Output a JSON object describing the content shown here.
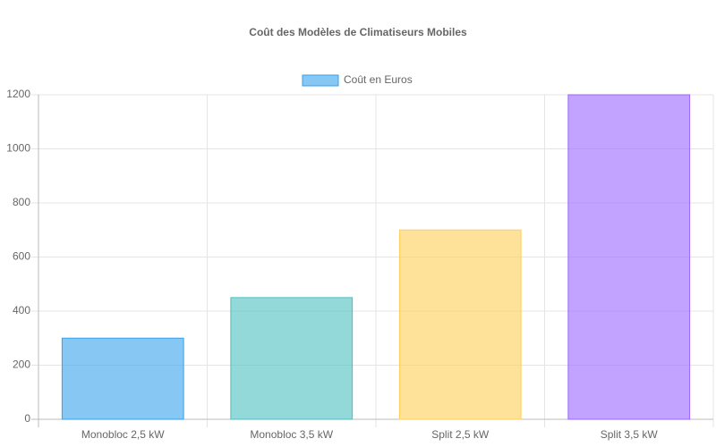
{
  "chart_data": {
    "type": "bar",
    "title": "Coût des Modèles de Climatiseurs Mobiles",
    "categories": [
      "Monobloc 2,5 kW",
      "Monobloc 3,5 kW",
      "Split 2,5 kW",
      "Split 3,5 kW"
    ],
    "series": [
      {
        "name": "Coût en Euros",
        "colors": [
          "rgba(54,162,235,0.6)",
          "rgba(75,192,192,0.6)",
          "rgba(255,206,86,0.6)",
          "rgba(153,102,255,0.6)"
        ],
        "border_colors": [
          "rgb(54,162,235)",
          "rgb(75,192,192)",
          "rgb(255,206,86)",
          "rgb(153,102,255)"
        ],
        "values": [
          300,
          450,
          700,
          1200
        ]
      }
    ],
    "ylim": [
      0,
      1200
    ],
    "yticks": [
      0,
      200,
      400,
      600,
      800,
      1000,
      1200
    ],
    "grid": true,
    "legend": "top"
  }
}
